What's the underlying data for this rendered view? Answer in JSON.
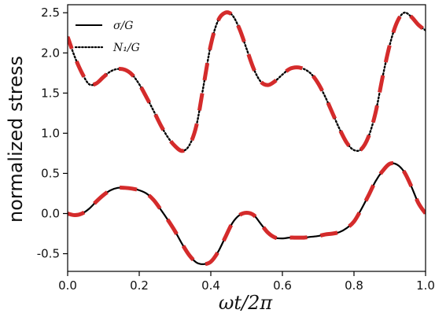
{
  "chart_data": {
    "type": "line",
    "xlabel": "ωt/2π",
    "ylabel": "normalized stress",
    "xlim": [
      0.0,
      1.0
    ],
    "ylim": [
      -0.72,
      2.6
    ],
    "xticks": [
      "0.0",
      "0.2",
      "0.4",
      "0.6",
      "0.8",
      "1.0"
    ],
    "yticks": [
      "-0.5",
      "0.0",
      "0.5",
      "1.0",
      "1.5",
      "2.0",
      "2.5"
    ],
    "xtick_values": [
      0.0,
      0.2,
      0.4,
      0.6,
      0.8,
      1.0
    ],
    "ytick_values": [
      -0.5,
      0.0,
      0.5,
      1.0,
      1.5,
      2.0,
      2.5
    ],
    "legend_position": "top-left",
    "grid": false,
    "series": [
      {
        "name": "σ/G",
        "style": "solid",
        "color": "#000000",
        "x": [
          0.0,
          0.02,
          0.04,
          0.06,
          0.08,
          0.1,
          0.12,
          0.14,
          0.16,
          0.18,
          0.2,
          0.22,
          0.24,
          0.26,
          0.28,
          0.3,
          0.32,
          0.34,
          0.36,
          0.38,
          0.4,
          0.42,
          0.44,
          0.46,
          0.48,
          0.5,
          0.52,
          0.54,
          0.56,
          0.58,
          0.6,
          0.62,
          0.64,
          0.66,
          0.68,
          0.7,
          0.72,
          0.74,
          0.76,
          0.78,
          0.8,
          0.82,
          0.84,
          0.86,
          0.88,
          0.9,
          0.92,
          0.94,
          0.96,
          0.98,
          1.0
        ],
        "y": [
          0.0,
          -0.02,
          0.0,
          0.06,
          0.15,
          0.23,
          0.29,
          0.32,
          0.32,
          0.31,
          0.29,
          0.25,
          0.17,
          0.05,
          -0.08,
          -0.22,
          -0.38,
          -0.52,
          -0.61,
          -0.63,
          -0.6,
          -0.48,
          -0.3,
          -0.12,
          -0.02,
          0.01,
          -0.02,
          -0.13,
          -0.24,
          -0.3,
          -0.31,
          -0.3,
          -0.3,
          -0.3,
          -0.29,
          -0.28,
          -0.26,
          -0.25,
          -0.23,
          -0.18,
          -0.1,
          0.05,
          0.22,
          0.4,
          0.53,
          0.62,
          0.61,
          0.52,
          0.34,
          0.13,
          0.0
        ]
      },
      {
        "name": "N₁/G",
        "style": "dotted",
        "color": "#000000",
        "x": [
          0.0,
          0.02,
          0.04,
          0.06,
          0.08,
          0.1,
          0.12,
          0.14,
          0.16,
          0.18,
          0.2,
          0.22,
          0.24,
          0.26,
          0.28,
          0.3,
          0.32,
          0.34,
          0.36,
          0.38,
          0.4,
          0.42,
          0.44,
          0.46,
          0.48,
          0.5,
          0.52,
          0.54,
          0.56,
          0.58,
          0.6,
          0.62,
          0.64,
          0.66,
          0.68,
          0.7,
          0.72,
          0.74,
          0.76,
          0.78,
          0.8,
          0.82,
          0.84,
          0.86,
          0.88,
          0.9,
          0.92,
          0.94,
          0.96,
          0.98,
          1.0
        ],
        "y": [
          2.2,
          1.95,
          1.75,
          1.61,
          1.62,
          1.7,
          1.77,
          1.8,
          1.79,
          1.73,
          1.61,
          1.45,
          1.28,
          1.1,
          0.95,
          0.84,
          0.78,
          0.85,
          1.1,
          1.6,
          2.1,
          2.4,
          2.5,
          2.47,
          2.3,
          2.05,
          1.8,
          1.64,
          1.6,
          1.65,
          1.73,
          1.8,
          1.82,
          1.8,
          1.74,
          1.62,
          1.45,
          1.25,
          1.05,
          0.88,
          0.79,
          0.8,
          0.95,
          1.25,
          1.7,
          2.1,
          2.38,
          2.5,
          2.45,
          2.35,
          2.28
        ]
      }
    ],
    "overlay": {
      "style": "dashed",
      "color": "#d42b2b",
      "overlays": [
        "σ/G",
        "N₁/G"
      ]
    }
  }
}
